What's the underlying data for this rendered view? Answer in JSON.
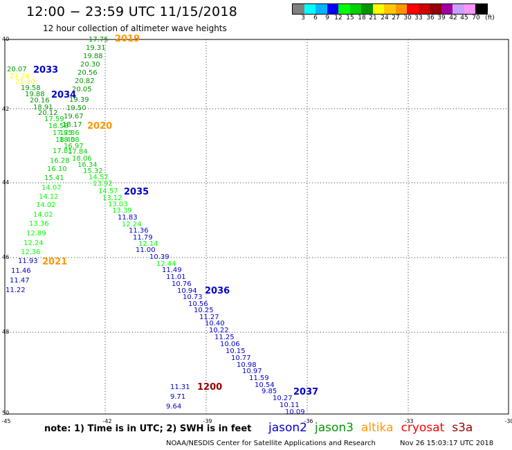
{
  "header": {
    "title": "12:00 − 23:59 UTC 11/15/2018",
    "subtitle": "12 hour collection of altimeter wave heights"
  },
  "legend": {
    "colors": [
      "#808080",
      "#00ffff",
      "#00b4ff",
      "#0000ff",
      "#00ff00",
      "#00d200",
      "#009600",
      "#ffff00",
      "#ffc800",
      "#ff9600",
      "#ff0000",
      "#d20000",
      "#960000",
      "#a000a0",
      "#c8a0ff",
      "#ff96ff",
      "#000000"
    ],
    "labels": [
      "3",
      "6",
      "9",
      "12",
      "15",
      "18",
      "21",
      "24",
      "27",
      "30",
      "33",
      "36",
      "39",
      "42",
      "45",
      "70",
      "(ft)"
    ]
  },
  "axes": {
    "y_labels": [
      "40",
      "42",
      "44",
      "46",
      "48",
      "50"
    ],
    "x_labels": [
      "-45",
      "-42",
      "-39",
      "-36",
      "-33",
      "-30"
    ]
  },
  "satellites": [
    {
      "name": "jason2",
      "color": "#0000c8"
    },
    {
      "name": "jason3",
      "color": "#009600"
    },
    {
      "name": "altika",
      "color": "#ff9600"
    },
    {
      "name": "cryosat",
      "color": "#ff0000"
    },
    {
      "name": "s3a",
      "color": "#960000"
    }
  ],
  "passes": [
    {
      "label": "2019",
      "color": "#ff9600"
    },
    {
      "label": "2033",
      "color": "#0000c8"
    },
    {
      "label": "2034",
      "color": "#0000c8"
    },
    {
      "label": "2020",
      "color": "#ff9600"
    },
    {
      "label": "2035",
      "color": "#0000c8"
    },
    {
      "label": "2021",
      "color": "#ff9600"
    },
    {
      "label": "2036",
      "color": "#0000c8"
    },
    {
      "label": "2037",
      "color": "#0000c8"
    },
    {
      "label": "1200",
      "color": "#960000"
    }
  ],
  "readings": [
    {
      "v": "17.75",
      "c": "#009600"
    },
    {
      "v": "19.31",
      "c": "#009600"
    },
    {
      "v": "19.88",
      "c": "#009600"
    },
    {
      "v": "20.30",
      "c": "#009600"
    },
    {
      "v": "20.56",
      "c": "#009600"
    },
    {
      "v": "20.82",
      "c": "#009600"
    },
    {
      "v": "20.05",
      "c": "#009600"
    },
    {
      "v": "19.39",
      "c": "#009600"
    },
    {
      "v": "19.50",
      "c": "#009600"
    },
    {
      "v": "19.67",
      "c": "#009600"
    },
    {
      "v": "20.07",
      "c": "#009600"
    },
    {
      "v": "21.26",
      "c": "#ffff00"
    },
    {
      "v": "21.30",
      "c": "#ffff00"
    },
    {
      "v": "19.58",
      "c": "#009600"
    },
    {
      "v": "19.88",
      "c": "#009600"
    },
    {
      "v": "20.16",
      "c": "#009600"
    },
    {
      "v": "18.91",
      "c": "#009600"
    },
    {
      "v": "20.12",
      "c": "#009600"
    },
    {
      "v": "17.59",
      "c": "#00d200"
    },
    {
      "v": "18.58",
      "c": "#00d200"
    },
    {
      "v": "18.17",
      "c": "#009600"
    },
    {
      "v": "17.85",
      "c": "#00d200"
    },
    {
      "v": "17.86",
      "c": "#00d200"
    },
    {
      "v": "18.40",
      "c": "#00d200"
    },
    {
      "v": "18.58",
      "c": "#00d200"
    },
    {
      "v": "16.97",
      "c": "#00d200"
    },
    {
      "v": "17.81",
      "c": "#00d200"
    },
    {
      "v": "17.84",
      "c": "#00d200"
    },
    {
      "v": "18.06",
      "c": "#00d200"
    },
    {
      "v": "16.28",
      "c": "#00d200"
    },
    {
      "v": "16.34",
      "c": "#00d200"
    },
    {
      "v": "16.10",
      "c": "#00d200"
    },
    {
      "v": "15.32",
      "c": "#00d200"
    },
    {
      "v": "15.41",
      "c": "#00d200"
    },
    {
      "v": "14.57",
      "c": "#00ff00"
    },
    {
      "v": "13.52",
      "c": "#00ff00"
    },
    {
      "v": "14.07",
      "c": "#00ff00"
    },
    {
      "v": "14.57",
      "c": "#00ff00"
    },
    {
      "v": "14.12",
      "c": "#00ff00"
    },
    {
      "v": "13.12",
      "c": "#00ff00"
    },
    {
      "v": "14.02",
      "c": "#00ff00"
    },
    {
      "v": "13.03",
      "c": "#00ff00"
    },
    {
      "v": "13.39",
      "c": "#00ff00"
    },
    {
      "v": "14.02",
      "c": "#00ff00"
    },
    {
      "v": "11.83",
      "c": "#0000c8"
    },
    {
      "v": "13.36",
      "c": "#00ff00"
    },
    {
      "v": "12.24",
      "c": "#00ff00"
    },
    {
      "v": "11.36",
      "c": "#0000c8"
    },
    {
      "v": "12.89",
      "c": "#00ff00"
    },
    {
      "v": "11.79",
      "c": "#0000c8"
    },
    {
      "v": "12.24",
      "c": "#00ff00"
    },
    {
      "v": "12.14",
      "c": "#00ff00"
    },
    {
      "v": "11.00",
      "c": "#0000c8"
    },
    {
      "v": "12.36",
      "c": "#00ff00"
    },
    {
      "v": "10.39",
      "c": "#0000c8"
    },
    {
      "v": "11.93",
      "c": "#0000c8"
    },
    {
      "v": "12.44",
      "c": "#00ff00"
    },
    {
      "v": "11.49",
      "c": "#0000c8"
    },
    {
      "v": "11.46",
      "c": "#0000c8"
    },
    {
      "v": "11.01",
      "c": "#0000c8"
    },
    {
      "v": "11.47",
      "c": "#0000c8"
    },
    {
      "v": "10.76",
      "c": "#0000c8"
    },
    {
      "v": "10.94",
      "c": "#0000c8"
    },
    {
      "v": "11.22",
      "c": "#0000c8"
    },
    {
      "v": "10.73",
      "c": "#0000c8"
    },
    {
      "v": "10.56",
      "c": "#0000c8"
    },
    {
      "v": "10.25",
      "c": "#0000c8"
    },
    {
      "v": "11.27",
      "c": "#0000c8"
    },
    {
      "v": "10.40",
      "c": "#0000c8"
    },
    {
      "v": "10.22",
      "c": "#0000c8"
    },
    {
      "v": "11.25",
      "c": "#0000c8"
    },
    {
      "v": "10.06",
      "c": "#0000c8"
    },
    {
      "v": "10.15",
      "c": "#0000c8"
    },
    {
      "v": "10.77",
      "c": "#0000c8"
    },
    {
      "v": "10.98",
      "c": "#0000c8"
    },
    {
      "v": "10.97",
      "c": "#0000c8"
    },
    {
      "v": "11.59",
      "c": "#0000c8"
    },
    {
      "v": "10.54",
      "c": "#0000c8"
    },
    {
      "v": "11.31",
      "c": "#0000c8"
    },
    {
      "v": "9.85",
      "c": "#0000c8"
    },
    {
      "v": "9.71",
      "c": "#0000c8"
    },
    {
      "v": "10.27",
      "c": "#0000c8"
    },
    {
      "v": "9.64",
      "c": "#0000c8"
    },
    {
      "v": "10.11",
      "c": "#0000c8"
    },
    {
      "v": "10.09",
      "c": "#0000c8"
    }
  ],
  "footer": {
    "note": "note:  1) Time is in UTC;  2) SWH is in feet",
    "center": "NOAA/NESDIS Center for Satellite Applications and Research",
    "date": "Nov 26 15:03:17 UTC 2018"
  }
}
